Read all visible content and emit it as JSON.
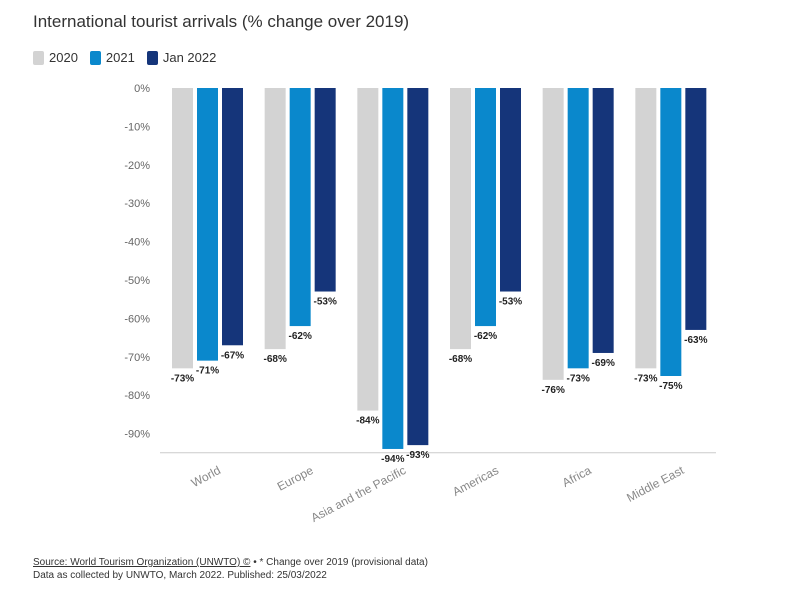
{
  "title": "International tourist arrivals (% change over 2019)",
  "legend": [
    {
      "label": "2020",
      "color": "#d3d3d3"
    },
    {
      "label": "2021",
      "color": "#0a88cc"
    },
    {
      "label": "Jan 2022",
      "color": "#15357a"
    }
  ],
  "chart_data": {
    "type": "bar",
    "title": "International tourist arrivals (% change over 2019)",
    "categories": [
      "World",
      "Europe",
      "Asia and the Pacific",
      "Americas",
      "Africa",
      "Middle East"
    ],
    "series": [
      {
        "name": "2020",
        "color": "#d3d3d3",
        "values": [
          -73,
          -68,
          -84,
          -68,
          -76,
          -73
        ]
      },
      {
        "name": "2021",
        "color": "#0a88cc",
        "values": [
          -71,
          -62,
          -94,
          -62,
          -73,
          -75
        ]
      },
      {
        "name": "Jan 2022",
        "color": "#15357a",
        "values": [
          -67,
          -53,
          -93,
          -53,
          -69,
          -63
        ]
      }
    ],
    "yticks": [
      "0%",
      "-10%",
      "-20%",
      "-30%",
      "-40%",
      "-50%",
      "-60%",
      "-70%",
      "-80%",
      "-90%"
    ],
    "ylim": [
      -95,
      0
    ],
    "data_labels": [
      [
        "-73%",
        "-68%",
        "-84%",
        "-68%",
        "-76%",
        "-73%"
      ],
      [
        "-71%",
        "-62%",
        "-94%",
        "-62%",
        "-73%",
        "-75%"
      ],
      [
        "-67%",
        "-53%",
        "-93%",
        "-53%",
        "-69%",
        "-63%"
      ]
    ],
    "legend_position": "top-left",
    "grid": false
  },
  "footer": {
    "source_link": "Source: World Tourism Organization (UNWTO) ©",
    "source_note": " • * Change over 2019 (provisional data)",
    "line2": "Data as collected by UNWTO, March 2022. Published: 25/03/2022"
  }
}
